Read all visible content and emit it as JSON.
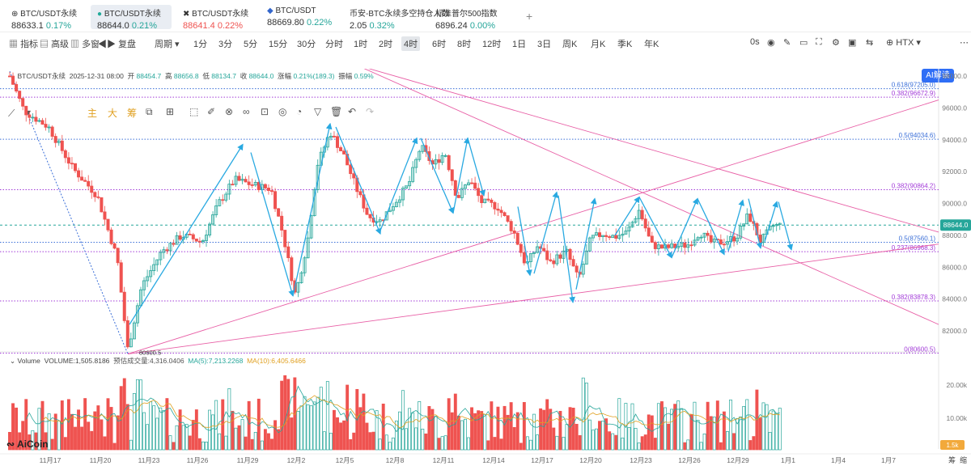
{
  "tickers": [
    {
      "name": "BTC/USDT永续",
      "price": "88633.1",
      "change": "0.17%",
      "dir": "up",
      "active": false
    },
    {
      "name": "BTC/USDT永续",
      "price": "88644.0",
      "change": "0.21%",
      "dir": "up",
      "active": true
    },
    {
      "name": "BTC/USDT永续",
      "price": "88641.4",
      "change": "0.22%",
      "dir": "dn",
      "active": false
    },
    {
      "name": "BTC/USDT",
      "price": "88669.80",
      "change": "0.22%",
      "dir": "up",
      "active": false
    },
    {
      "name": "币安-BTC永续多空持仓人数",
      "price": "2.05",
      "change": "0.32%",
      "dir": "up",
      "active": false
    },
    {
      "name": "标准普尔500指数",
      "price": "6896.24",
      "change": "0.00%",
      "dir": "up",
      "active": false
    }
  ],
  "toolbar": {
    "indicator": "指标",
    "advanced": "高级",
    "multi_chart": "多窗",
    "replay": "复盘",
    "period": "周期",
    "intervals": [
      "1分",
      "3分",
      "5分",
      "15分",
      "30分",
      "分时",
      "1时",
      "2时",
      "4时",
      "6时",
      "8时",
      "12时",
      "1日",
      "3日",
      "周K",
      "月K",
      "季K",
      "年K"
    ],
    "selected_interval": "4时",
    "countdown": "0s",
    "exchange": "HTX",
    "ai_button": "AI解读"
  },
  "drawing_tools": {
    "main": "主",
    "big": "大",
    "chip": "筹"
  },
  "chart_info": {
    "symbol": "BTC/USDT永续",
    "date": "2025-12-31 08:00",
    "open_label": "开",
    "open": "88454.7",
    "high_label": "高",
    "high": "88656.8",
    "low_label": "低",
    "low": "88134.7",
    "close_label": "收",
    "close": "88644.0",
    "change_label": "涨幅",
    "change": "0.21%(189.3)",
    "amplitude_label": "振幅",
    "amplitude": "0.59%"
  },
  "volume_info": {
    "label": "Volume",
    "volume": "VOLUME:1,505.8186",
    "forecast": "预估成交量:4,316.0406",
    "ma5": "MA(5):7,213.2268",
    "ma10": "MA(10):6,405.6466"
  },
  "price_axis": [
    "98000.0",
    "96000.0",
    "94000.0",
    "92000.0",
    "90000.0",
    "88000.0",
    "86000.0",
    "84000.0",
    "82000.0"
  ],
  "current_price": "88644.0",
  "volume_axis": [
    "20.00k",
    "10.00k"
  ],
  "volume_current": "1.5k",
  "date_axis": [
    "11月17",
    "11月20",
    "11月23",
    "11月26",
    "11月29",
    "12月2",
    "12月5",
    "12月8",
    "12月11",
    "12月14",
    "12月17",
    "12月20",
    "12月23",
    "12月26",
    "12月29",
    "1月1",
    "1月4",
    "1月7"
  ],
  "fib_levels": [
    {
      "label": "0.618(97205.0)",
      "price": 97205,
      "color": "#3b6fd8",
      "style": "dotted"
    },
    {
      "label": "0.382(96672.9)",
      "price": 96672.9,
      "color": "#a23bd8",
      "style": "dotted"
    },
    {
      "label": "0.5(94034.6)",
      "price": 94034.6,
      "color": "#3b6fd8",
      "style": "dotted"
    },
    {
      "label": "0.382(90864.2)",
      "price": 90864.2,
      "color": "#a23bd8",
      "style": "dotted"
    },
    {
      "label": "0.5(87560.1)",
      "price": 87560.1,
      "color": "#3b6fd8",
      "style": "dotted"
    },
    {
      "label": "0.237(86968.3)",
      "price": 86968.3,
      "color": "#a23bd8",
      "style": "dotted"
    },
    {
      "label": "0.382(83878.3)",
      "price": 83878.3,
      "color": "#a23bd8",
      "style": "dotted"
    },
    {
      "label": "0(80600.5)",
      "price": 80600.5,
      "color": "#a23bd8",
      "style": "dotted"
    }
  ],
  "low_marker": "80600.5",
  "right_bottom_labels": {
    "chip": "筹",
    "fold": "缩"
  },
  "logo": "AiCoin",
  "colors": {
    "up": "#26a69a",
    "down": "#ef5350",
    "trend": "#e85fa6",
    "wave": "#29a9e1",
    "accent": "#2f6ef6"
  }
}
